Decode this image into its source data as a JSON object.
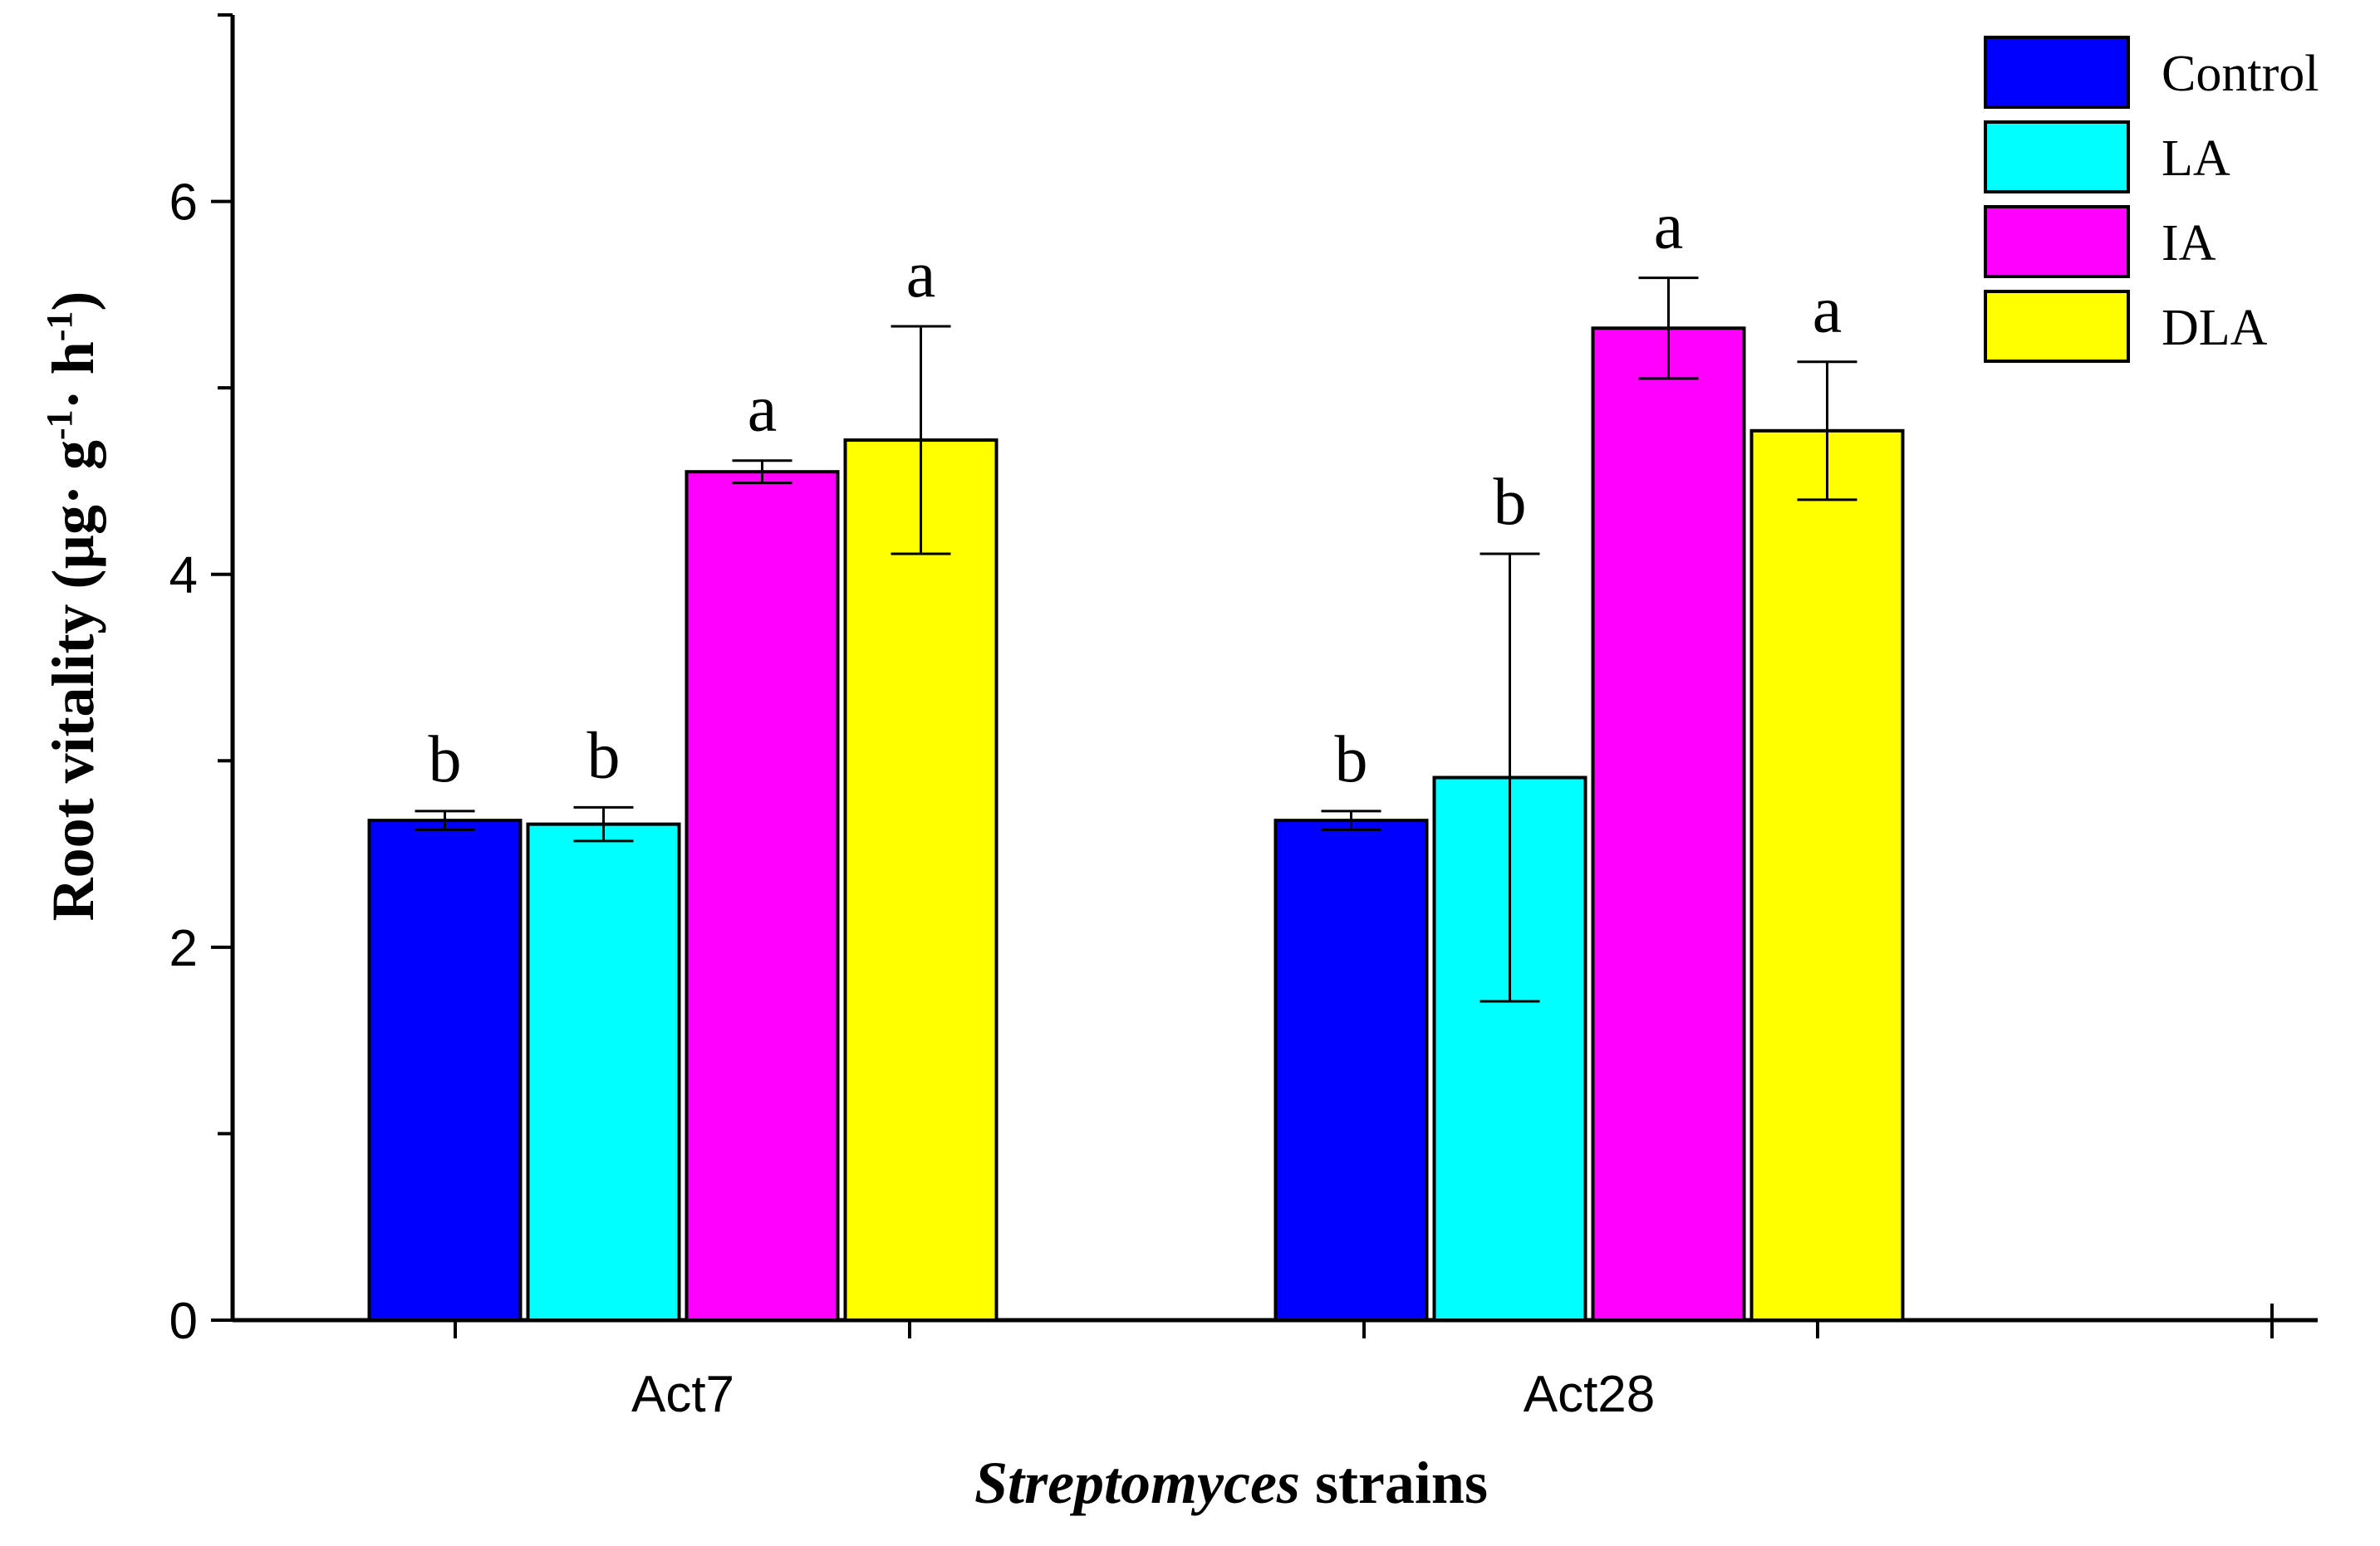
{
  "chart_data": {
    "type": "bar",
    "categories": [
      "Act7",
      "Act28"
    ],
    "series": [
      {
        "name": "Control",
        "color": "#0000ff",
        "values": [
          2.68,
          2.68
        ],
        "errors": [
          0.05,
          0.05
        ],
        "letters": [
          "b",
          "b"
        ]
      },
      {
        "name": "LA",
        "color": "#00ffff",
        "values": [
          2.66,
          2.91
        ],
        "errors": [
          0.09,
          1.2
        ],
        "letters": [
          "b",
          "b"
        ]
      },
      {
        "name": "IA",
        "color": "#ff00ff",
        "values": [
          4.55,
          5.32
        ],
        "errors": [
          0.06,
          0.27
        ],
        "letters": [
          "a",
          "a"
        ]
      },
      {
        "name": "DLA",
        "color": "#ffff00",
        "values": [
          4.72,
          4.77
        ],
        "errors": [
          0.61,
          0.37
        ],
        "letters": [
          "a",
          "a"
        ]
      }
    ],
    "ylim": [
      0,
      7
    ],
    "yticks": [
      0,
      2,
      4,
      6
    ],
    "ylabel_parts": [
      "Root vitality (µg·  g",
      "-1",
      "·  h",
      "-1",
      ")"
    ],
    "xlabel_parts": [
      "Streptomyces",
      " strains"
    ],
    "legend_position": "top-right",
    "grid": false
  }
}
